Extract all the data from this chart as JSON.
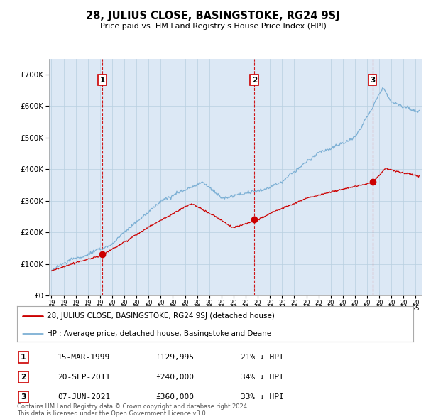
{
  "title": "28, JULIUS CLOSE, BASINGSTOKE, RG24 9SJ",
  "subtitle": "Price paid vs. HM Land Registry's House Price Index (HPI)",
  "ylim": [
    0,
    750000
  ],
  "yticks": [
    0,
    100000,
    200000,
    300000,
    400000,
    500000,
    600000,
    700000
  ],
  "xlim_start": 1994.8,
  "xlim_end": 2025.5,
  "hpi_color": "#7bafd4",
  "price_color": "#cc0000",
  "plot_bg_color": "#dce8f5",
  "sale_points": [
    {
      "year": 1999.21,
      "price": 129995,
      "label": "1"
    },
    {
      "year": 2011.72,
      "price": 240000,
      "label": "2"
    },
    {
      "year": 2021.44,
      "price": 360000,
      "label": "3"
    }
  ],
  "legend_label_red": "28, JULIUS CLOSE, BASINGSTOKE, RG24 9SJ (detached house)",
  "legend_label_blue": "HPI: Average price, detached house, Basingstoke and Deane",
  "table_rows": [
    {
      "num": "1",
      "date": "15-MAR-1999",
      "price": "£129,995",
      "hpi": "21% ↓ HPI"
    },
    {
      "num": "2",
      "date": "20-SEP-2011",
      "price": "£240,000",
      "hpi": "34% ↓ HPI"
    },
    {
      "num": "3",
      "date": "07-JUN-2021",
      "price": "£360,000",
      "hpi": "33% ↓ HPI"
    }
  ],
  "footer": "Contains HM Land Registry data © Crown copyright and database right 2024.\nThis data is licensed under the Open Government Licence v3.0.",
  "background_color": "#ffffff",
  "grid_color": "#b8cfe0"
}
